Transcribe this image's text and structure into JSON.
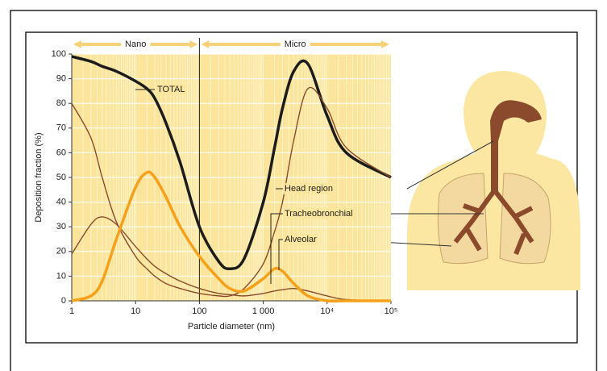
{
  "chart_data": {
    "type": "line",
    "x_label": "Particle diameter (nm)",
    "y_label": "Deposition fraction (%)",
    "x": [
      1,
      2,
      3,
      5,
      10,
      15,
      20,
      30,
      50,
      100,
      200,
      300,
      500,
      1000,
      1500,
      2000,
      3000,
      5000,
      10000,
      20000,
      100000
    ],
    "series": [
      {
        "name": "TOTAL",
        "color": "#1c1c1c",
        "width": 3.5,
        "values": [
          99,
          97,
          95,
          93,
          89,
          86,
          82,
          72,
          56,
          30,
          16,
          13,
          17,
          40,
          62,
          78,
          93,
          96,
          75,
          60,
          50
        ]
      },
      {
        "name": "Head region",
        "color": "#8b4a2b",
        "width": 1.4,
        "values": [
          80,
          66,
          50,
          32,
          18,
          13,
          10,
          7,
          5,
          3,
          2,
          2,
          5,
          15,
          28,
          40,
          65,
          86,
          78,
          62,
          50
        ]
      },
      {
        "name": "Tracheobronchial",
        "color": "#8b4a2b",
        "width": 1.4,
        "values": [
          19,
          31,
          34,
          31,
          22,
          17,
          14,
          11,
          8,
          5,
          3,
          2.5,
          2,
          3,
          4,
          4.5,
          5,
          4,
          2,
          0.5,
          0
        ]
      },
      {
        "name": "Alveolar",
        "color": "#f7a11a",
        "width": 3.5,
        "values": [
          0,
          2,
          8,
          25,
          46,
          52,
          50,
          42,
          30,
          18,
          9,
          5,
          4,
          9,
          13,
          12,
          7,
          2,
          0,
          0,
          0
        ]
      }
    ],
    "xscale": "log",
    "xlim": [
      1,
      100000
    ],
    "ylim": [
      0,
      100
    ],
    "xticks": [
      1,
      10,
      100,
      {
        "value": 1000,
        "label": "1 000"
      },
      {
        "value": 10000,
        "label": "10⁴"
      },
      {
        "value": 100000,
        "label": "10⁵"
      }
    ],
    "yticks": [
      0,
      10,
      20,
      30,
      40,
      50,
      60,
      70,
      80,
      90,
      100
    ],
    "regions": [
      {
        "label": "Nano",
        "from": 1,
        "to": 100
      },
      {
        "label": "Micro",
        "from": 100,
        "to": 100000
      }
    ],
    "grid": true
  }
}
